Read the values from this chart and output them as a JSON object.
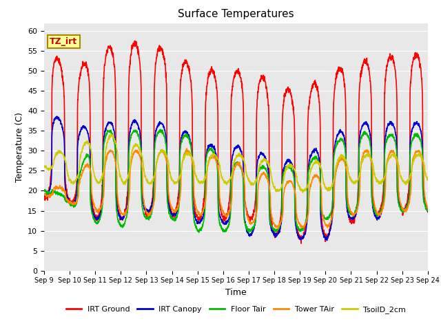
{
  "title": "Surface Temperatures",
  "xlabel": "Time",
  "ylabel": "Temperature (C)",
  "ylim": [
    0,
    62
  ],
  "yticks": [
    0,
    5,
    10,
    15,
    20,
    25,
    30,
    35,
    40,
    45,
    50,
    55,
    60
  ],
  "bg_color": "#e8e8e8",
  "fig_color": "#ffffff",
  "annotation_text": "TZ_irt",
  "annotation_bg": "#ffff99",
  "annotation_border": "#aa8800",
  "series": [
    {
      "label": "IRT Ground",
      "color": "#ff0000"
    },
    {
      "label": "IRT Canopy",
      "color": "#0000cc"
    },
    {
      "label": "Floor Tair",
      "color": "#00bb00"
    },
    {
      "label": "Tower TAir",
      "color": "#ff8800"
    },
    {
      "label": "TsoilD_2cm",
      "color": "#cccc00"
    }
  ],
  "line_width": 1.2,
  "n_days": 15,
  "pts_per_day": 144,
  "x_tick_labels": [
    "Sep 9",
    "Sep 10",
    "Sep 11",
    "Sep 12",
    "Sep 13",
    "Sep 14",
    "Sep 15",
    "Sep 16",
    "Sep 17",
    "Sep 18",
    "Sep 19",
    "Sep 20",
    "Sep 21",
    "Sep 22",
    "Sep 23",
    "Sep 24"
  ],
  "irt_ground_peaks": [
    59,
    48,
    55,
    57,
    57,
    55,
    50,
    50,
    50,
    47,
    44,
    49,
    52,
    53,
    54
  ],
  "irt_ground_mins": [
    18,
    17,
    13,
    13,
    14,
    14,
    13,
    13,
    13,
    9,
    8,
    8,
    12,
    14,
    15
  ],
  "irt_canopy_peaks": [
    41,
    36,
    36,
    38,
    37,
    37,
    33,
    30,
    32,
    27,
    28,
    32,
    37,
    37,
    37
  ],
  "irt_canopy_mins": [
    19,
    17,
    13,
    13,
    15,
    14,
    12,
    12,
    9,
    9,
    8,
    8,
    13,
    13,
    15
  ],
  "floor_tair_peaks": [
    21,
    18,
    35,
    35,
    35,
    35,
    33,
    28,
    26,
    26,
    26,
    30,
    35,
    34,
    34
  ],
  "floor_tair_mins": [
    20,
    17,
    12,
    11,
    13,
    13,
    10,
    10,
    10,
    10,
    10,
    13,
    14,
    14,
    15
  ],
  "tower_tair_peaks": [
    22,
    20,
    30,
    30,
    30,
    30,
    30,
    28,
    26,
    23,
    22,
    25,
    30,
    30,
    30
  ],
  "tower_tair_mins": [
    19,
    17,
    15,
    14,
    14,
    15,
    14,
    14,
    12,
    11,
    11,
    11,
    14,
    14,
    15
  ],
  "tsoil_peaks": [
    31,
    29,
    34,
    34,
    30,
    30,
    29,
    29,
    29,
    27,
    26,
    28,
    29,
    29,
    29
  ],
  "tsoil_mins": [
    26,
    22,
    22,
    22,
    22,
    22,
    22,
    22,
    22,
    20,
    20,
    20,
    22,
    22,
    22
  ],
  "peak_sharpness": 4.0,
  "peak_phase": 0.55
}
